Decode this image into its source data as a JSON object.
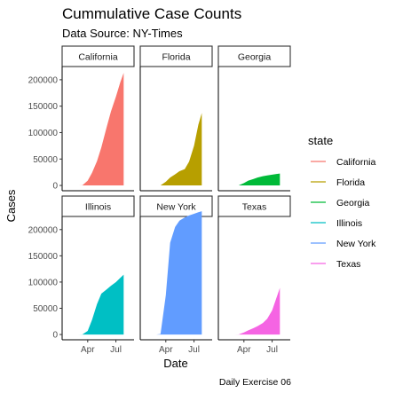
{
  "chart_data": {
    "type": "area",
    "title": "Cummulative Case Counts",
    "subtitle": "Data Source: NY-Times",
    "caption": "Daily Exercise 06",
    "xlabel": "Date",
    "ylabel": "Cases",
    "facet_by": "state",
    "facet_layout": "2 rows x 3 columns, free x per panel, shared y per row",
    "x_domain": [
      "2020-01-21",
      "2020-08-17"
    ],
    "x_ticks": [
      {
        "date": "2020-04-01",
        "label": "Apr"
      },
      {
        "date": "2020-07-01",
        "label": "Jul"
      }
    ],
    "y_ticks": [
      0,
      50000,
      100000,
      150000,
      200000
    ],
    "y_tick_labels": [
      "0",
      "50000",
      "100000",
      "150000",
      "200000"
    ],
    "ylim": [
      -10000,
      225000
    ],
    "grid": false,
    "legend": {
      "title": "state",
      "placement": "right",
      "entries": [
        {
          "name": "California",
          "color": "#F8766D"
        },
        {
          "name": "Florida",
          "color": "#B79F00"
        },
        {
          "name": "Georgia",
          "color": "#00BA38"
        },
        {
          "name": "Illinois",
          "color": "#00BFC4"
        },
        {
          "name": "New York",
          "color": "#619CFF"
        },
        {
          "name": "Texas",
          "color": "#F564E3"
        }
      ]
    },
    "series": [
      {
        "name": "California",
        "color": "#F8766D",
        "x": [
          "2020-01-25",
          "2020-03-01",
          "2020-03-15",
          "2020-04-01",
          "2020-04-15",
          "2020-05-01",
          "2020-05-15",
          "2020-06-01",
          "2020-06-15",
          "2020-07-01",
          "2020-07-15",
          "2020-07-26"
        ],
        "values": [
          0,
          0,
          300,
          9000,
          24000,
          46000,
          72000,
          110000,
          140000,
          168000,
          195000,
          213000
        ]
      },
      {
        "name": "Florida",
        "color": "#B79F00",
        "x": [
          "2020-03-01",
          "2020-03-15",
          "2020-04-01",
          "2020-04-15",
          "2020-05-01",
          "2020-05-15",
          "2020-06-01",
          "2020-06-15",
          "2020-07-01",
          "2020-07-15",
          "2020-07-26"
        ],
        "values": [
          0,
          150,
          7000,
          15000,
          21000,
          27000,
          31000,
          45000,
          75000,
          115000,
          137000
        ]
      },
      {
        "name": "Georgia",
        "color": "#00BA38",
        "x": [
          "2020-03-02",
          "2020-03-15",
          "2020-04-01",
          "2020-04-15",
          "2020-05-01",
          "2020-05-15",
          "2020-06-01",
          "2020-06-15",
          "2020-07-01",
          "2020-07-15",
          "2020-07-26"
        ],
        "values": [
          0,
          100,
          4500,
          9000,
          12000,
          15000,
          17500,
          19000,
          20500,
          21700,
          22500
        ]
      },
      {
        "name": "Illinois",
        "color": "#00BFC4",
        "x": [
          "2020-01-24",
          "2020-03-01",
          "2020-03-15",
          "2020-04-01",
          "2020-04-15",
          "2020-05-01",
          "2020-05-15",
          "2020-06-01",
          "2020-06-15",
          "2020-07-01",
          "2020-07-15",
          "2020-07-26"
        ],
        "values": [
          0,
          0,
          100,
          7000,
          28000,
          58000,
          78000,
          86000,
          93000,
          100000,
          108000,
          114000
        ]
      },
      {
        "name": "New York",
        "color": "#619CFF",
        "x": [
          "2020-03-01",
          "2020-03-15",
          "2020-04-01",
          "2020-04-15",
          "2020-05-01",
          "2020-05-15",
          "2020-06-01",
          "2020-06-15",
          "2020-07-01",
          "2020-07-15",
          "2020-07-26"
        ],
        "values": [
          0,
          1000,
          75000,
          175000,
          205000,
          217000,
          223000,
          227000,
          230000,
          233000,
          235000
        ]
      },
      {
        "name": "Texas",
        "color": "#F564E3",
        "x": [
          "2020-02-12",
          "2020-03-01",
          "2020-03-15",
          "2020-04-01",
          "2020-04-15",
          "2020-05-01",
          "2020-05-15",
          "2020-06-01",
          "2020-06-15",
          "2020-07-01",
          "2020-07-15",
          "2020-07-26"
        ],
        "values": [
          0,
          0,
          100,
          4000,
          8000,
          12000,
          16000,
          22000,
          30000,
          46000,
          70000,
          89000
        ]
      }
    ]
  }
}
